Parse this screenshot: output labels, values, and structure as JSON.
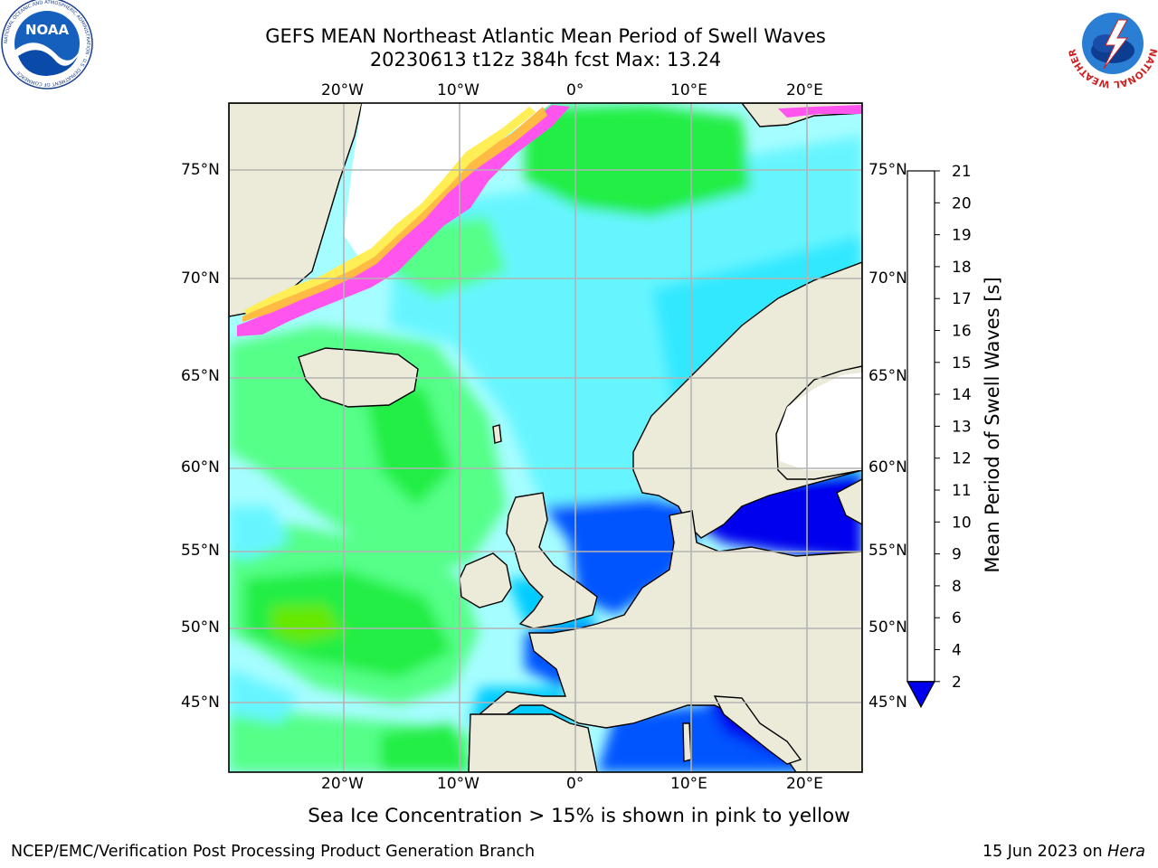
{
  "header": {
    "title_line1": "GEFS MEAN Northeast Atlantic Mean Period of Swell Waves",
    "title_line2": "20230613 t12z 384h fcst   Max: 13.24"
  },
  "logos": {
    "left": {
      "name": "NOAA",
      "text": "NOAA",
      "ring_text": "NATIONAL OCEANIC AND ATMOSPHERIC ADMINISTRATION · U.S. DEPARTMENT OF COMMERCE"
    },
    "right": {
      "name": "National Weather Service",
      "ring_text": "NATIONAL WEATHER SERVICE"
    }
  },
  "map": {
    "lon_labels": [
      "20°W",
      "10°W",
      "0°",
      "10°E",
      "20°E"
    ],
    "lat_labels": [
      "75°N",
      "70°N",
      "65°N",
      "60°N",
      "55°N",
      "50°N",
      "45°N"
    ],
    "colors": {
      "land": "#ecebd9",
      "grid": "#b3b3b3",
      "ice_pink": "#ff55ee",
      "ice_orange": "#ffbb44",
      "ice_yellow": "#ffee55"
    }
  },
  "colorbar": {
    "label": "Mean Period of Swell Waves [s]",
    "ticks": [
      "2",
      "4",
      "6",
      "8",
      "9",
      "10",
      "11",
      "12",
      "13",
      "14",
      "15",
      "16",
      "17",
      "18",
      "19",
      "20",
      "21"
    ],
    "colors": [
      "#0055ff",
      "#00ccff",
      "#33e8ff",
      "#66f5ff",
      "#a6fdff",
      "#55ff88",
      "#22ee44",
      "#00dd00",
      "#66e800",
      "#ccf000",
      "#f5f000",
      "#ffee00",
      "#ffcc00",
      "#ff9900",
      "#ff6600",
      "#ff3300",
      "#ff0000"
    ],
    "extend_color": "#0000ee"
  },
  "caption": "Sea Ice Concentration > 15% is shown in pink to yellow",
  "footer": {
    "left": "NCEP/EMC/Verification Post Processing Product Generation Branch",
    "right_prefix": "15 Jun 2023 on ",
    "right_host": "Hera"
  }
}
